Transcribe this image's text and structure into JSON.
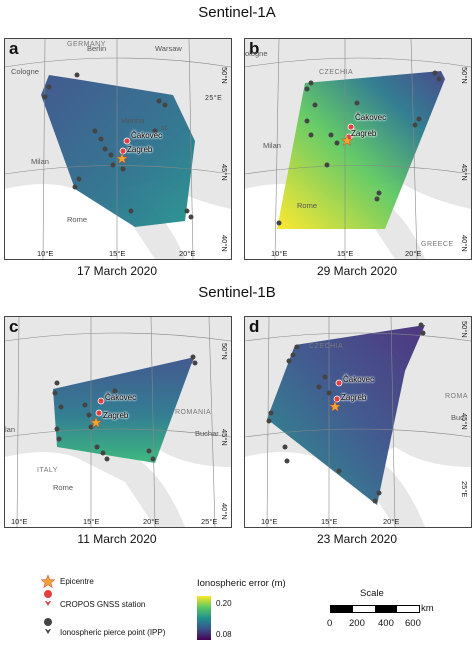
{
  "sections": {
    "top": "Sentinel-1A",
    "bottom": "Sentinel-1B"
  },
  "panels": [
    {
      "letter": "a",
      "date": "17 March 2020",
      "countries": [
        "GERMANY"
      ],
      "cities": [
        "Berlin",
        "Warsaw",
        "Cologne",
        "Vienna",
        "Milan",
        "Rome"
      ],
      "stations": [
        "Čakovec",
        "Zagreb"
      ],
      "x_ticks": [
        "10°E",
        "15°E",
        "20°E"
      ],
      "y_ticks": [
        "50°N",
        "45°N",
        "40°N"
      ],
      "extra_labels": [
        "25°E",
        "st"
      ],
      "colors": [
        "#3b528b",
        "#21918c",
        "#2c728e"
      ]
    },
    {
      "letter": "b",
      "date": "29 March 2020",
      "countries": [
        "CZECHIA",
        "GREECE"
      ],
      "cities": [
        "ologne",
        "Milan",
        "Rome"
      ],
      "stations": [
        "Čakovec",
        "Zagreb"
      ],
      "x_ticks": [
        "10°E",
        "15°E",
        "20°E"
      ],
      "y_ticks": [
        "50°N",
        "45°N",
        "40°N"
      ],
      "extra_labels": [],
      "colors": [
        "#414487",
        "#5ec962",
        "#fde725"
      ]
    },
    {
      "letter": "c",
      "date": "11 March 2020",
      "countries": [
        "ROMANIA",
        "ITALY"
      ],
      "cities": [
        "lan",
        "Rome",
        "Buchar"
      ],
      "stations": [
        "Čakovec",
        "Zagreb"
      ],
      "x_ticks": [
        "10°E",
        "15°E",
        "20°E",
        "25°E"
      ],
      "y_ticks": [
        "50°N",
        "45°N",
        "40°N"
      ],
      "extra_labels": [],
      "colors": [
        "#3b528b",
        "#2a788e",
        "#35b779"
      ]
    },
    {
      "letter": "d",
      "date": "23 March 2020",
      "countries": [
        "CZECHIA",
        "ROMA"
      ],
      "cities": [
        "Buc"
      ],
      "stations": [
        "Čakovec",
        "Zagreb"
      ],
      "x_ticks": [
        "10°E",
        "15°E",
        "20°E"
      ],
      "y_ticks": [
        "50°N",
        "45°N",
        "25°E"
      ],
      "extra_labels": [],
      "colors": [
        "#472d7b",
        "#3b528b",
        "#21918c"
      ]
    }
  ],
  "legend": {
    "epicentre": "Epicentre",
    "station": "CROPOS GNSS station",
    "ipp": "Ionospheric pierce point (IPP)",
    "colorbar_title": "Ionospheric error (m)",
    "colorbar_max": "0.20",
    "colorbar_min": "0.08"
  },
  "scale": {
    "title": "Scale",
    "unit": "km",
    "ticks": [
      "0",
      "200",
      "400",
      "600"
    ]
  }
}
